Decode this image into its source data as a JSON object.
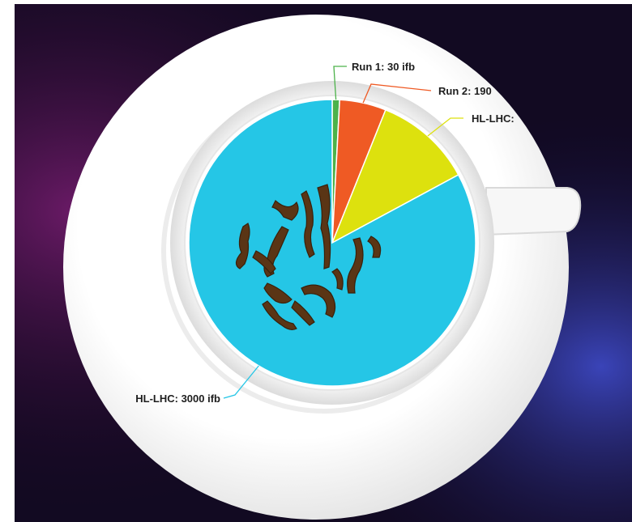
{
  "chart_data": {
    "type": "pie",
    "title": "",
    "categories": [
      "Run 1",
      "Run 2",
      "HL-LHC",
      "HL-LHC"
    ],
    "values": [
      30,
      190,
      400,
      3000
    ],
    "labels": [
      "Run 1: 30 ifb",
      "Run 2: 190",
      "HL-LHC:",
      "HL-LHC: 3000 ifb"
    ],
    "colors": [
      "#4cb24a",
      "#ef5a24",
      "#dde10e",
      "#25c6e6"
    ],
    "legend": "none",
    "grid": false
  }
}
